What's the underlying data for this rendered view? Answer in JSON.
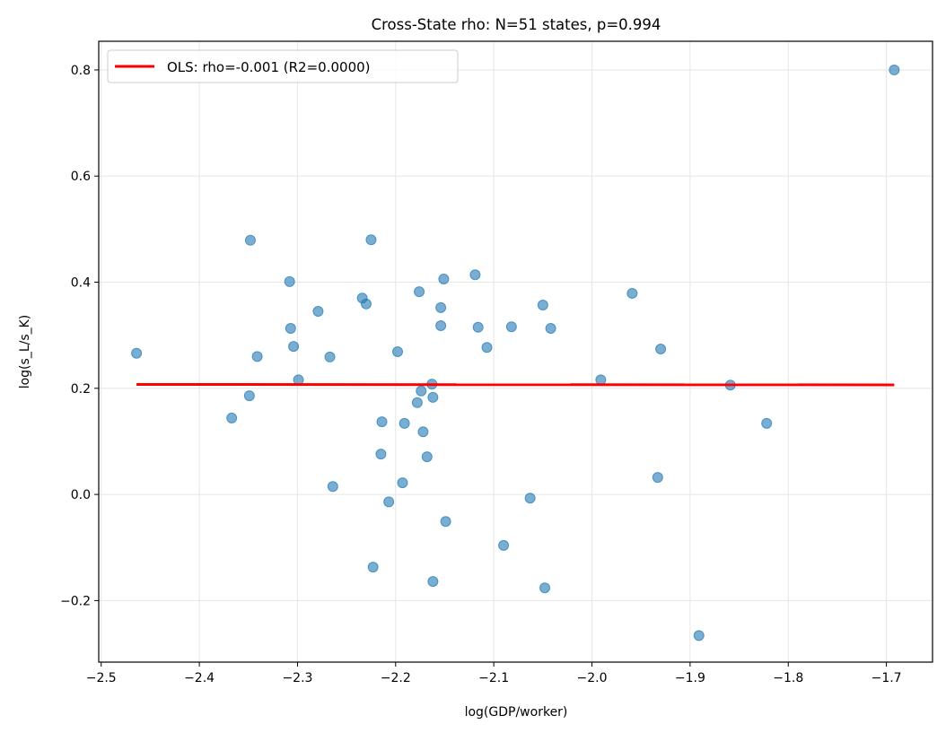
{
  "chart_data": {
    "type": "scatter",
    "title": "Cross-State rho: N=51 states, p=0.994",
    "xlabel": "log(GDP/worker)",
    "ylabel": "log(s_L/s_K)",
    "xlim": [
      -2.5025,
      -1.653
    ],
    "ylim": [
      -0.316,
      0.854
    ],
    "xticks": [
      -2.5,
      -2.4,
      -2.3,
      -2.2,
      -2.1,
      -2.0,
      -1.9,
      -1.8,
      -1.7
    ],
    "xtick_labels": [
      "−2.5",
      "−2.4",
      "−2.3",
      "−2.2",
      "−2.1",
      "−2.0",
      "−1.9",
      "−1.8",
      "−1.7"
    ],
    "yticks": [
      -0.2,
      0.0,
      0.2,
      0.4,
      0.6,
      0.8
    ],
    "ytick_labels": [
      "−0.2",
      "0.0",
      "0.2",
      "0.4",
      "0.6",
      "0.8"
    ],
    "grid": true,
    "legend_position": "top-left",
    "points_color": "#1f77b4",
    "points": [
      [
        -2.464,
        0.266
      ],
      [
        -2.348,
        0.479
      ],
      [
        -2.349,
        0.186
      ],
      [
        -2.367,
        0.144
      ],
      [
        -2.341,
        0.26
      ],
      [
        -2.308,
        0.401
      ],
      [
        -2.307,
        0.313
      ],
      [
        -2.304,
        0.279
      ],
      [
        -2.299,
        0.216
      ],
      [
        -2.279,
        0.345
      ],
      [
        -2.267,
        0.259
      ],
      [
        -2.264,
        0.015
      ],
      [
        -2.234,
        0.37
      ],
      [
        -2.23,
        0.359
      ],
      [
        -2.225,
        0.48
      ],
      [
        -2.223,
        -0.137
      ],
      [
        -2.215,
        0.076
      ],
      [
        -2.214,
        0.137
      ],
      [
        -2.207,
        -0.014
      ],
      [
        -2.198,
        0.269
      ],
      [
        -2.193,
        0.022
      ],
      [
        -2.191,
        0.134
      ],
      [
        -2.178,
        0.173
      ],
      [
        -2.176,
        0.382
      ],
      [
        -2.174,
        0.195
      ],
      [
        -2.172,
        0.118
      ],
      [
        -2.168,
        0.071
      ],
      [
        -2.163,
        0.208
      ],
      [
        -2.162,
        0.183
      ],
      [
        -2.162,
        -0.164
      ],
      [
        -2.154,
        0.352
      ],
      [
        -2.154,
        0.318
      ],
      [
        -2.151,
        0.406
      ],
      [
        -2.149,
        -0.051
      ],
      [
        -2.119,
        0.414
      ],
      [
        -2.116,
        0.315
      ],
      [
        -2.107,
        0.277
      ],
      [
        -2.09,
        -0.096
      ],
      [
        -2.082,
        0.316
      ],
      [
        -2.063,
        -0.007
      ],
      [
        -2.05,
        0.357
      ],
      [
        -2.048,
        -0.176
      ],
      [
        -2.042,
        0.313
      ],
      [
        -1.991,
        0.216
      ],
      [
        -1.959,
        0.379
      ],
      [
        -1.933,
        0.032
      ],
      [
        -1.93,
        0.274
      ],
      [
        -1.891,
        -0.266
      ],
      [
        -1.859,
        0.206
      ],
      [
        -1.822,
        0.134
      ],
      [
        -1.692,
        0.8
      ]
    ],
    "fit_line": {
      "name": "OLS: rho=-0.001 (R2=0.0000)",
      "color": "#ff0000",
      "x": [
        -2.464,
        -1.692
      ],
      "y": [
        0.2073,
        0.2065
      ]
    }
  }
}
